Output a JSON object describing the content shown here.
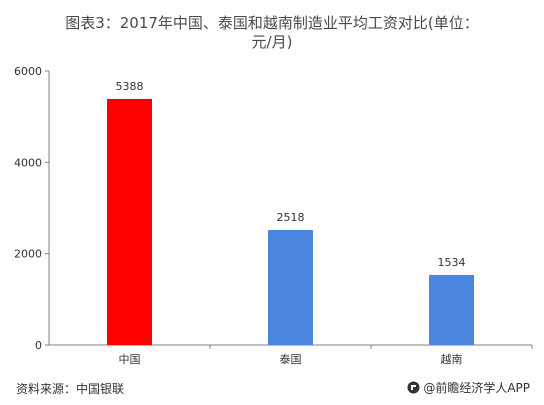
{
  "title_line1": "图表3：2017年中国、泰国和越南制造业平均工资对比(单位：",
  "title_line2": "元/月)",
  "footer": {
    "source": "资料来源：中国银联",
    "brand": "@前瞻经济学人APP"
  },
  "colors": {
    "china_bar": "#ff0000",
    "other_bar": "#4a86e0",
    "axis": "#808080",
    "text": "#333333"
  },
  "chart_data": {
    "type": "bar",
    "title": "",
    "xlabel": "",
    "ylabel": "",
    "categories": [
      "中国",
      "泰国",
      "越南"
    ],
    "values": [
      5388,
      2518,
      1534
    ],
    "value_labels": [
      "5388",
      "2518",
      "1534"
    ],
    "yticks": [
      0,
      2000,
      4000,
      6000
    ],
    "ytick_labels": [
      "0",
      "2000",
      "4000",
      "6000"
    ],
    "ylim": [
      0,
      6000
    ],
    "grid": false,
    "legend": "none"
  }
}
